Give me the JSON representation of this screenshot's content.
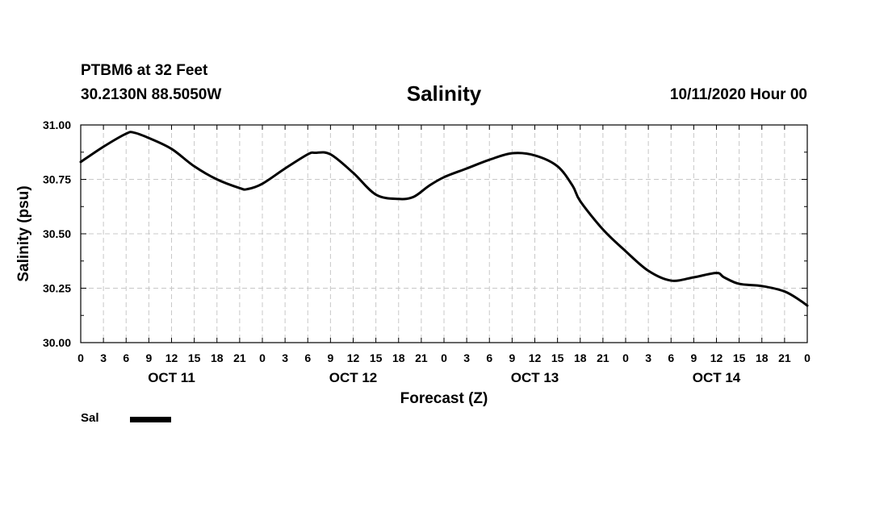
{
  "header": {
    "station": "PTBM6 at 32 Feet",
    "coords": "30.2130N 88.5050W",
    "title": "Salinity",
    "run_time": "10/11/2020 Hour 00"
  },
  "colors": {
    "line": "#000000",
    "grid": "#c8c8c8",
    "frame": "#000000",
    "background": "#ffffff"
  },
  "chart_data": {
    "type": "line",
    "title": "Salinity",
    "xlabel": "Forecast (Z)",
    "ylabel": "Salinity (psu)",
    "xlim": [
      0,
      96
    ],
    "ylim": [
      30.0,
      31.0
    ],
    "grid": true,
    "y_ticks": [
      30.0,
      30.25,
      30.5,
      30.75,
      31.0
    ],
    "y_tick_labels": [
      "30.00",
      "30.25",
      "30.50",
      "30.75",
      "31.00"
    ],
    "x_tick_hours": [
      0,
      3,
      6,
      9,
      12,
      15,
      18,
      21,
      24,
      27,
      30,
      33,
      36,
      39,
      42,
      45,
      48,
      51,
      54,
      57,
      60,
      63,
      66,
      69,
      72,
      75,
      78,
      81,
      84,
      87,
      90,
      93,
      96
    ],
    "x_tick_labels": [
      "0",
      "3",
      "6",
      "9",
      "12",
      "15",
      "18",
      "21",
      "0",
      "3",
      "6",
      "9",
      "12",
      "15",
      "18",
      "21",
      "0",
      "3",
      "6",
      "9",
      "12",
      "15",
      "18",
      "21",
      "0",
      "3",
      "6",
      "9",
      "12",
      "15",
      "18",
      "21",
      "0"
    ],
    "day_labels": [
      {
        "hour": 12,
        "label": "OCT 11"
      },
      {
        "hour": 36,
        "label": "OCT 12"
      },
      {
        "hour": 60,
        "label": "OCT 13"
      },
      {
        "hour": 84,
        "label": "OCT 14"
      }
    ],
    "legend_position": "bottom-left",
    "series": [
      {
        "name": "Sal",
        "x": [
          0,
          3,
          6,
          7,
          9,
          12,
          15,
          18,
          21,
          22,
          24,
          27,
          30,
          31,
          33,
          36,
          39,
          42,
          44,
          46,
          48,
          51,
          54,
          57,
          60,
          63,
          65,
          66,
          69,
          72,
          75,
          78,
          81,
          84,
          85,
          87,
          90,
          93,
          95,
          96
        ],
        "y": [
          30.83,
          30.9,
          30.96,
          30.965,
          30.94,
          30.89,
          30.81,
          30.75,
          30.71,
          30.705,
          30.73,
          30.8,
          30.865,
          30.872,
          30.865,
          30.78,
          30.68,
          30.66,
          30.67,
          30.72,
          30.76,
          30.8,
          30.84,
          30.87,
          30.86,
          30.81,
          30.72,
          30.65,
          30.52,
          30.42,
          30.33,
          30.285,
          30.3,
          30.32,
          30.3,
          30.27,
          30.26,
          30.235,
          30.195,
          30.17
        ]
      }
    ]
  },
  "legend": {
    "label": "Sal"
  }
}
